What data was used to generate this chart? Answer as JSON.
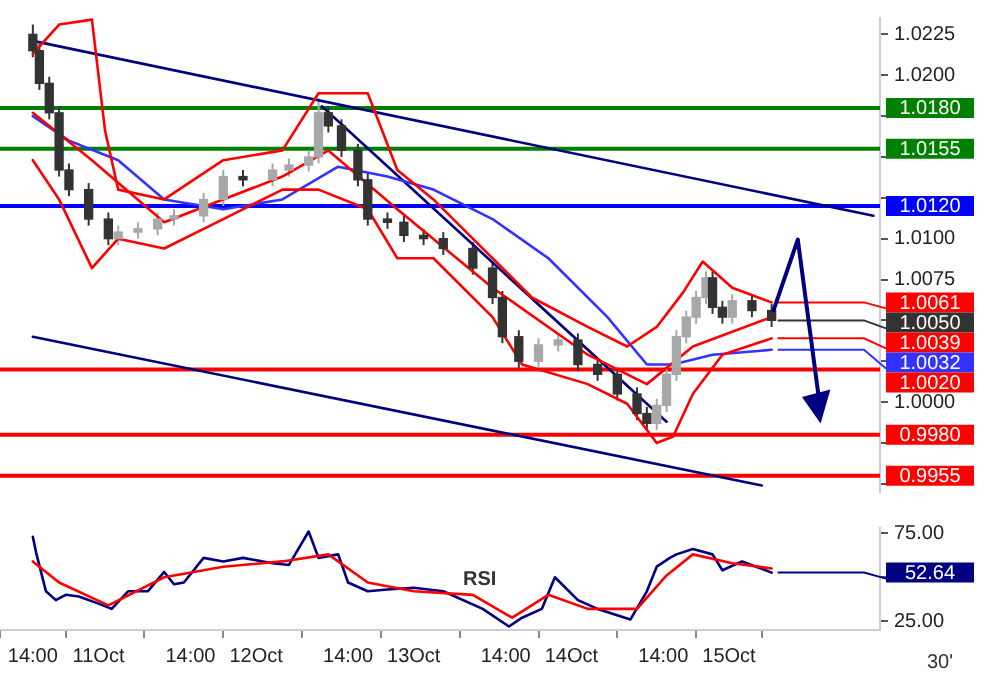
{
  "chart_data": [
    {
      "type": "candlestick",
      "tick_labels": "y",
      "xlim": [
        "--10-10T09:00",
        "--10-15T23:00"
      ],
      "ylim": [
        0.9945,
        1.0235
      ],
      "yticks": [
        1.0225,
        {
          "value": 1.02,
          "label": "1.0200"
        },
        {
          "value": 1.0175,
          "label": null
        },
        {
          "value": 1.015,
          "label": null
        },
        {
          "value": 1.0125,
          "label": null
        },
        {
          "value": 1.01,
          "label": "1.0100"
        },
        1.0075,
        {
          "value": 1.005,
          "label": null
        },
        {
          "value": 1.0025,
          "label": null
        },
        {
          "value": 1,
          "label": "1.0000"
        },
        {
          "value": 0.9975,
          "label": null
        },
        {
          "value": 0.995,
          "label": null
        }
      ],
      "x": [
        "--10-10T14:00",
        "--10-10T15:00",
        "--10-10T16:30",
        "--10-10T18:00",
        "--10-10T19:30",
        "--10-10T22:30",
        "--10-11T01:30",
        "--10-11T03:00",
        "--10-11T06:00",
        "--10-11T09:00",
        "--10-11T11:30",
        "--10-11T16:00",
        "--10-11T19:00",
        "--10-11T22:00",
        "--10-12T02:30",
        "--10-12T05:00",
        "--10-12T08:00",
        "--10-12T09:30",
        "--10-12T11:00",
        "--10-12T13:00",
        "--10-12T15:30",
        "--10-12T17:00",
        "--10-12T20:00",
        "--10-12T22:30",
        "--10-13T01:30",
        "--10-13T04:30",
        "--10-13T09:00",
        "--10-13T12:00",
        "--10-13T13:30",
        "--10-13T16:00",
        "--10-13T19:00",
        "--10-13T22:00",
        "--10-14T01:00",
        "--10-14T04:00",
        "--10-14T07:00",
        "--10-14T10:00",
        "--10-14T11:30",
        "--10-14T13:00",
        "--10-14T14:30",
        "--10-14T16:00",
        "--10-14T17:30",
        "--10-14T19:00",
        "--10-14T20:30",
        "--10-14T21:30",
        "--10-14T23:00",
        "--10-15T00:30",
        "--10-15T03:30",
        "--10-15T06:30"
      ],
      "ohlc": [
        [
          1.0225,
          1.0231,
          1.0211,
          1.0215
        ],
        [
          1.0215,
          1.0219,
          1.0191,
          1.0195
        ],
        [
          1.0195,
          1.0199,
          1.0173,
          1.0177
        ],
        [
          1.0177,
          1.0181,
          1.0138,
          1.0142
        ],
        [
          1.0142,
          1.0146,
          1.0126,
          1.013
        ],
        [
          1.013,
          1.0134,
          1.0108,
          1.0112
        ],
        [
          1.0112,
          1.0116,
          1.0096,
          1.01
        ],
        [
          1.01,
          1.0108,
          1.0096,
          1.0104
        ],
        [
          1.0104,
          1.011,
          1.01,
          1.0106
        ],
        [
          1.0106,
          1.0116,
          1.0102,
          1.0112
        ],
        [
          1.0112,
          1.0118,
          1.0108,
          1.0114
        ],
        [
          1.0114,
          1.0128,
          1.011,
          1.0124
        ],
        [
          1.0124,
          1.0142,
          1.012,
          1.0138
        ],
        [
          1.0138,
          1.0142,
          1.0132,
          1.0136
        ],
        [
          1.0136,
          1.0146,
          1.0132,
          1.0142
        ],
        [
          1.0142,
          1.0149,
          1.0138,
          1.0145
        ],
        [
          1.0145,
          1.0154,
          1.0141,
          1.015
        ],
        [
          1.015,
          1.0186,
          1.0146,
          1.0177
        ],
        [
          1.0177,
          1.0181,
          1.0165,
          1.0169
        ],
        [
          1.0169,
          1.0173,
          1.015,
          1.0154
        ],
        [
          1.0154,
          1.0158,
          1.0132,
          1.0136
        ],
        [
          1.0136,
          1.014,
          1.0108,
          1.0112
        ],
        [
          1.0112,
          1.0116,
          1.0106,
          1.011
        ],
        [
          1.011,
          1.0114,
          1.0098,
          1.0102
        ],
        [
          1.0102,
          1.0106,
          1.0096,
          1.01
        ],
        [
          1.01,
          1.0104,
          1.009,
          1.0094
        ],
        [
          1.0094,
          1.0098,
          1.0078,
          1.0082
        ],
        [
          1.0082,
          1.0086,
          1.006,
          1.0064
        ],
        [
          1.0064,
          1.0068,
          1.0036,
          1.004
        ],
        [
          1.004,
          1.0044,
          1.0021,
          1.0025
        ],
        [
          1.0025,
          1.0039,
          1.0021,
          1.0035
        ],
        [
          1.0035,
          1.0042,
          1.0031,
          1.0038
        ],
        [
          1.0038,
          1.0042,
          1.0019,
          1.0023
        ],
        [
          1.0023,
          1.0027,
          1.0013,
          1.0017
        ],
        [
          1.0017,
          1.0021,
          1.0001,
          1.0005
        ],
        [
          1.0005,
          1.0009,
          0.9989,
          0.9993
        ],
        [
          0.9993,
          0.9997,
          0.9983,
          0.9987
        ],
        [
          0.9987,
          1.0002,
          0.9983,
          0.9998
        ],
        [
          0.9998,
          1.0021,
          0.9994,
          1.0017
        ],
        [
          1.0017,
          1.0044,
          1.0013,
          1.004
        ],
        [
          1.004,
          1.0056,
          1.0036,
          1.0052
        ],
        [
          1.0052,
          1.0068,
          1.0048,
          1.0064
        ],
        [
          1.0064,
          1.008,
          1.006,
          1.0076
        ],
        [
          1.0076,
          1.008,
          1.0054,
          1.0058
        ],
        [
          1.0058,
          1.0062,
          1.0048,
          1.0052
        ],
        [
          1.0052,
          1.0066,
          1.0048,
          1.0062
        ],
        [
          1.0062,
          1.0066,
          1.0052,
          1.0056
        ],
        [
          1.0056,
          1.006,
          1.0046,
          1.005
        ]
      ],
      "annotations": [
        {
          "text": "1.0061",
          "x": "--10-15T06:30",
          "y": 1.0061
        },
        {
          "text": "1.0050",
          "x": "--10-15T06:30",
          "y": 1.005
        },
        {
          "text": "1.0039",
          "x": "--10-15T06:30",
          "y": 1.0039
        },
        {
          "text": "1.0032",
          "x": "--10-15T06:30",
          "y": 1.0032
        }
      ],
      "colors": [
        "#333333",
        "#333333",
        "#333333",
        "#333333",
        "#333333",
        "#333333",
        "#333333",
        "#a8a8a8",
        "#a8a8a8",
        "#a8a8a8",
        "#a8a8a8",
        "#a8a8a8",
        "#a8a8a8",
        "#333333",
        "#a8a8a8",
        "#a8a8a8",
        "#a8a8a8",
        "#a8a8a8",
        "#333333",
        "#333333",
        "#333333",
        "#333333",
        "#333333",
        "#333333",
        "#333333",
        "#333333",
        "#333333",
        "#333333",
        "#333333",
        "#333333",
        "#a8a8a8",
        "#a8a8a8",
        "#333333",
        "#333333",
        "#333333",
        "#333333",
        "#333333",
        "#a8a8a8",
        "#a8a8a8",
        "#a8a8a8",
        "#a8a8a8",
        "#a8a8a8",
        "#a8a8a8",
        "#333333",
        "#333333",
        "#a8a8a8",
        "#333333",
        "#333333"
      ],
      "series": [
        {
          "type": "line",
          "color": "#ff0000",
          "x": [
            "--10-10T14:00",
            "--10-10T18:00",
            "--10-10T23:00",
            "--10-11T01:00",
            "--10-11T03:00",
            "--10-11T10:00",
            "--10-11T19:00",
            "--10-12T04:00",
            "--10-12T09:30",
            "--10-12T17:00",
            "--10-12T21:30",
            "--10-13T03:00",
            "--10-13T12:00",
            "--10-13T18:00",
            "--10-14T02:30",
            "--10-14T08:30",
            "--10-14T13:00",
            "--10-14T17:00",
            "--10-14T20:00",
            "--10-15T00:30",
            "--10-15T06:30"
          ],
          "values": [
            1.0213,
            1.0231,
            1.0234,
            1.0166,
            1.013,
            1.0124,
            1.0148,
            1.0154,
            1.0189,
            1.0189,
            1.0142,
            1.0124,
            1.0088,
            1.0064,
            1.0046,
            1.0034,
            1.0046,
            1.0067,
            1.0086,
            1.007,
            1.0061
          ]
        },
        {
          "type": "line",
          "color": "#ff0000",
          "x": [
            "--10-10T14:00",
            "--10-10T18:00",
            "--10-10T23:00",
            "--10-11T03:00",
            "--10-11T10:00",
            "--10-11T19:00",
            "--10-12T04:00",
            "--10-12T09:30",
            "--10-12T17:00",
            "--10-12T21:30",
            "--10-13T03:00",
            "--10-13T12:00",
            "--10-13T16:30",
            "--10-14T02:30",
            "--10-14T08:30",
            "--10-14T13:00",
            "--10-14T15:30",
            "--10-14T18:30",
            "--10-14T23:00",
            "--10-15T06:30"
          ],
          "values": [
            1.0148,
            1.0124,
            1.0082,
            1.01,
            1.0094,
            1.0112,
            1.013,
            1.013,
            1.0118,
            1.0088,
            1.0088,
            1.0052,
            1.0023,
            1.0011,
            0.9999,
            0.9975,
            0.9979,
            1.0005,
            1.0029,
            1.0039
          ]
        },
        {
          "type": "line",
          "color": "#ff0000",
          "x": [
            "--10-10T14:00",
            "--10-10T23:00",
            "--10-11T10:00",
            "--10-12T04:00",
            "--10-12T11:00",
            "--10-12T21:30",
            "--10-13T12:00",
            "--10-14T02:30",
            "--10-14T11:30",
            "--10-14T18:30",
            "--10-15T06:30"
          ],
          "values": [
            1.0177,
            1.0148,
            1.011,
            1.0138,
            1.0154,
            1.0118,
            1.007,
            1.0029,
            1.0011,
            1.0034,
            1.0052
          ]
        },
        {
          "type": "line",
          "color": "#3333ff",
          "x": [
            "--10-10T14:00",
            "--10-10T19:30",
            "--10-11T03:00",
            "--10-11T10:00",
            "--10-11T19:00",
            "--10-12T04:00",
            "--10-12T12:30",
            "--10-12T20:00",
            "--10-13T03:00",
            "--10-13T12:00",
            "--10-13T20:30",
            "--10-14T05:30",
            "--10-14T11:30",
            "--10-14T15:30",
            "--10-14T21:30",
            "--10-15T06:30"
          ],
          "values": [
            1.0175,
            1.016,
            1.0148,
            1.0124,
            1.0118,
            1.0124,
            1.0144,
            1.0138,
            1.013,
            1.0112,
            1.0088,
            1.0052,
            1.0023,
            1.0023,
            1.0029,
            1.0032
          ]
        },
        {
          "type": "line",
          "color": "#000080",
          "x": [
            "--10-10T14:00",
            "--10-15T22:00"
          ],
          "values": [
            1.0221,
            1.0114
          ]
        },
        {
          "type": "line",
          "color": "#000080",
          "x": [
            "--10-12T10:00",
            "--10-14T14:30"
          ],
          "values": [
            1.0181,
            0.9988
          ]
        },
        {
          "type": "line",
          "color": "#000080",
          "x": [
            "--10-10T14:00",
            "--10-15T05:00"
          ],
          "values": [
            1.004,
            0.9949
          ]
        }
      ],
      "ref_lines": [
        {
          "axis": "y",
          "value": 1.018,
          "label": "1.0180",
          "color": "#008000"
        },
        {
          "axis": "y",
          "value": 1.0155,
          "label": "1.0155",
          "color": "#008000"
        },
        {
          "axis": "y",
          "value": 1.012,
          "label": "1.0120",
          "color": "#0000ff"
        },
        {
          "axis": "y",
          "value": 1.002,
          "label": "1.0020",
          "color": "#ff0000"
        },
        {
          "axis": "y",
          "value": 0.998,
          "label": "0.9980",
          "color": "#ff0000"
        },
        {
          "axis": "y",
          "value": 0.9955,
          "label": "0.9955",
          "color": "#ff0000"
        }
      ]
    },
    {
      "type": "line",
      "xlim": [
        "--10-10T09:00",
        "--10-15T23:00"
      ],
      "ylim": [
        20,
        78
      ],
      "xticks": [
        {
          "value": "--10-10T14:00",
          "label": "14:00"
        },
        {
          "value": "--10-11T00:00",
          "label": "11Oct"
        },
        {
          "value": "--10-11T14:00",
          "label": "14:00"
        },
        {
          "value": "--10-12T00:00",
          "label": "12Oct"
        },
        {
          "value": "--10-12T14:00",
          "label": "14:00"
        },
        {
          "value": "--10-13T00:00",
          "label": "13Oct"
        },
        {
          "value": "--10-13T14:00",
          "label": "14:00"
        },
        {
          "value": "--10-14T00:00",
          "label": "14Oct"
        },
        {
          "value": "--10-14T14:00",
          "label": "14:00"
        },
        {
          "value": "--10-15T00:00",
          "label": "15Oct"
        }
      ],
      "yticks": [
        {
          "value": 25,
          "label": "25.00"
        },
        {
          "value": 50,
          "label": null
        },
        {
          "value": 75,
          "label": "75.00"
        }
      ],
      "annotations": [
        "RSI",
        "30'",
        {
          "text": "52.64",
          "x": "--10-15T06:30",
          "y": 52.64
        }
      ],
      "series": [
        {
          "color": "#ff0000",
          "x": [
            "--10-10T14:00",
            "--10-10T18:00",
            "--10-11T01:30",
            "--10-11T10:00",
            "--10-11T19:00",
            "--10-12T04:00",
            "--10-12T11:00",
            "--10-12T17:00",
            "--10-13T00:00",
            "--10-13T09:00",
            "--10-13T15:00",
            "--10-13T20:30",
            "--10-14T02:30",
            "--10-14T10:00",
            "--10-14T14:30",
            "--10-14T18:30",
            "--10-15T00:30",
            "--10-15T06:30"
          ],
          "values": [
            59,
            47,
            34,
            50,
            56,
            59,
            63,
            47,
            42,
            40,
            27,
            40,
            32,
            32,
            51,
            63,
            58,
            55
          ]
        },
        {
          "color": "#000080",
          "x": [
            "--10-10T14:00",
            "--10-10T14:30",
            "--10-10T16:00",
            "--10-10T17:30",
            "--10-10T19:00",
            "--10-10T21:00",
            "--10-11T00:00",
            "--10-11T02:00",
            "--10-11T04:30",
            "--10-11T07:30",
            "--10-11T10:00",
            "--10-11T11:30",
            "--10-11T13:00",
            "--10-11T16:00",
            "--10-11T19:00",
            "--10-11T22:00",
            "--10-12T02:30",
            "--10-12T05:00",
            "--10-12T08:00",
            "--10-12T09:30",
            "--10-12T12:30",
            "--10-12T14:00",
            "--10-12T17:00",
            "--10-12T20:00",
            "--10-13T00:00",
            "--10-13T04:30",
            "--10-13T10:30",
            "--10-13T14:30",
            "--10-13T16:30",
            "--10-13T19:30",
            "--10-13T21:30",
            "--10-14T01:00",
            "--10-14T04:00",
            "--10-14T09:00",
            "--10-14T11:30",
            "--10-14T13:00",
            "--10-14T15:00",
            "--10-14T16:00",
            "--10-14T18:30",
            "--10-14T21:30",
            "--10-14T23:00",
            "--10-15T02:00",
            "--10-15T06:30"
          ],
          "values": [
            73,
            64,
            42,
            37,
            40,
            39,
            35,
            32,
            42,
            42,
            53,
            46,
            47,
            61,
            59,
            61,
            58,
            57,
            76,
            61,
            63,
            47,
            42,
            43,
            44,
            42,
            32,
            22,
            27,
            32,
            50,
            37,
            32,
            26,
            42,
            56,
            61,
            63,
            66,
            63,
            54,
            59,
            52.64
          ]
        }
      ]
    }
  ]
}
